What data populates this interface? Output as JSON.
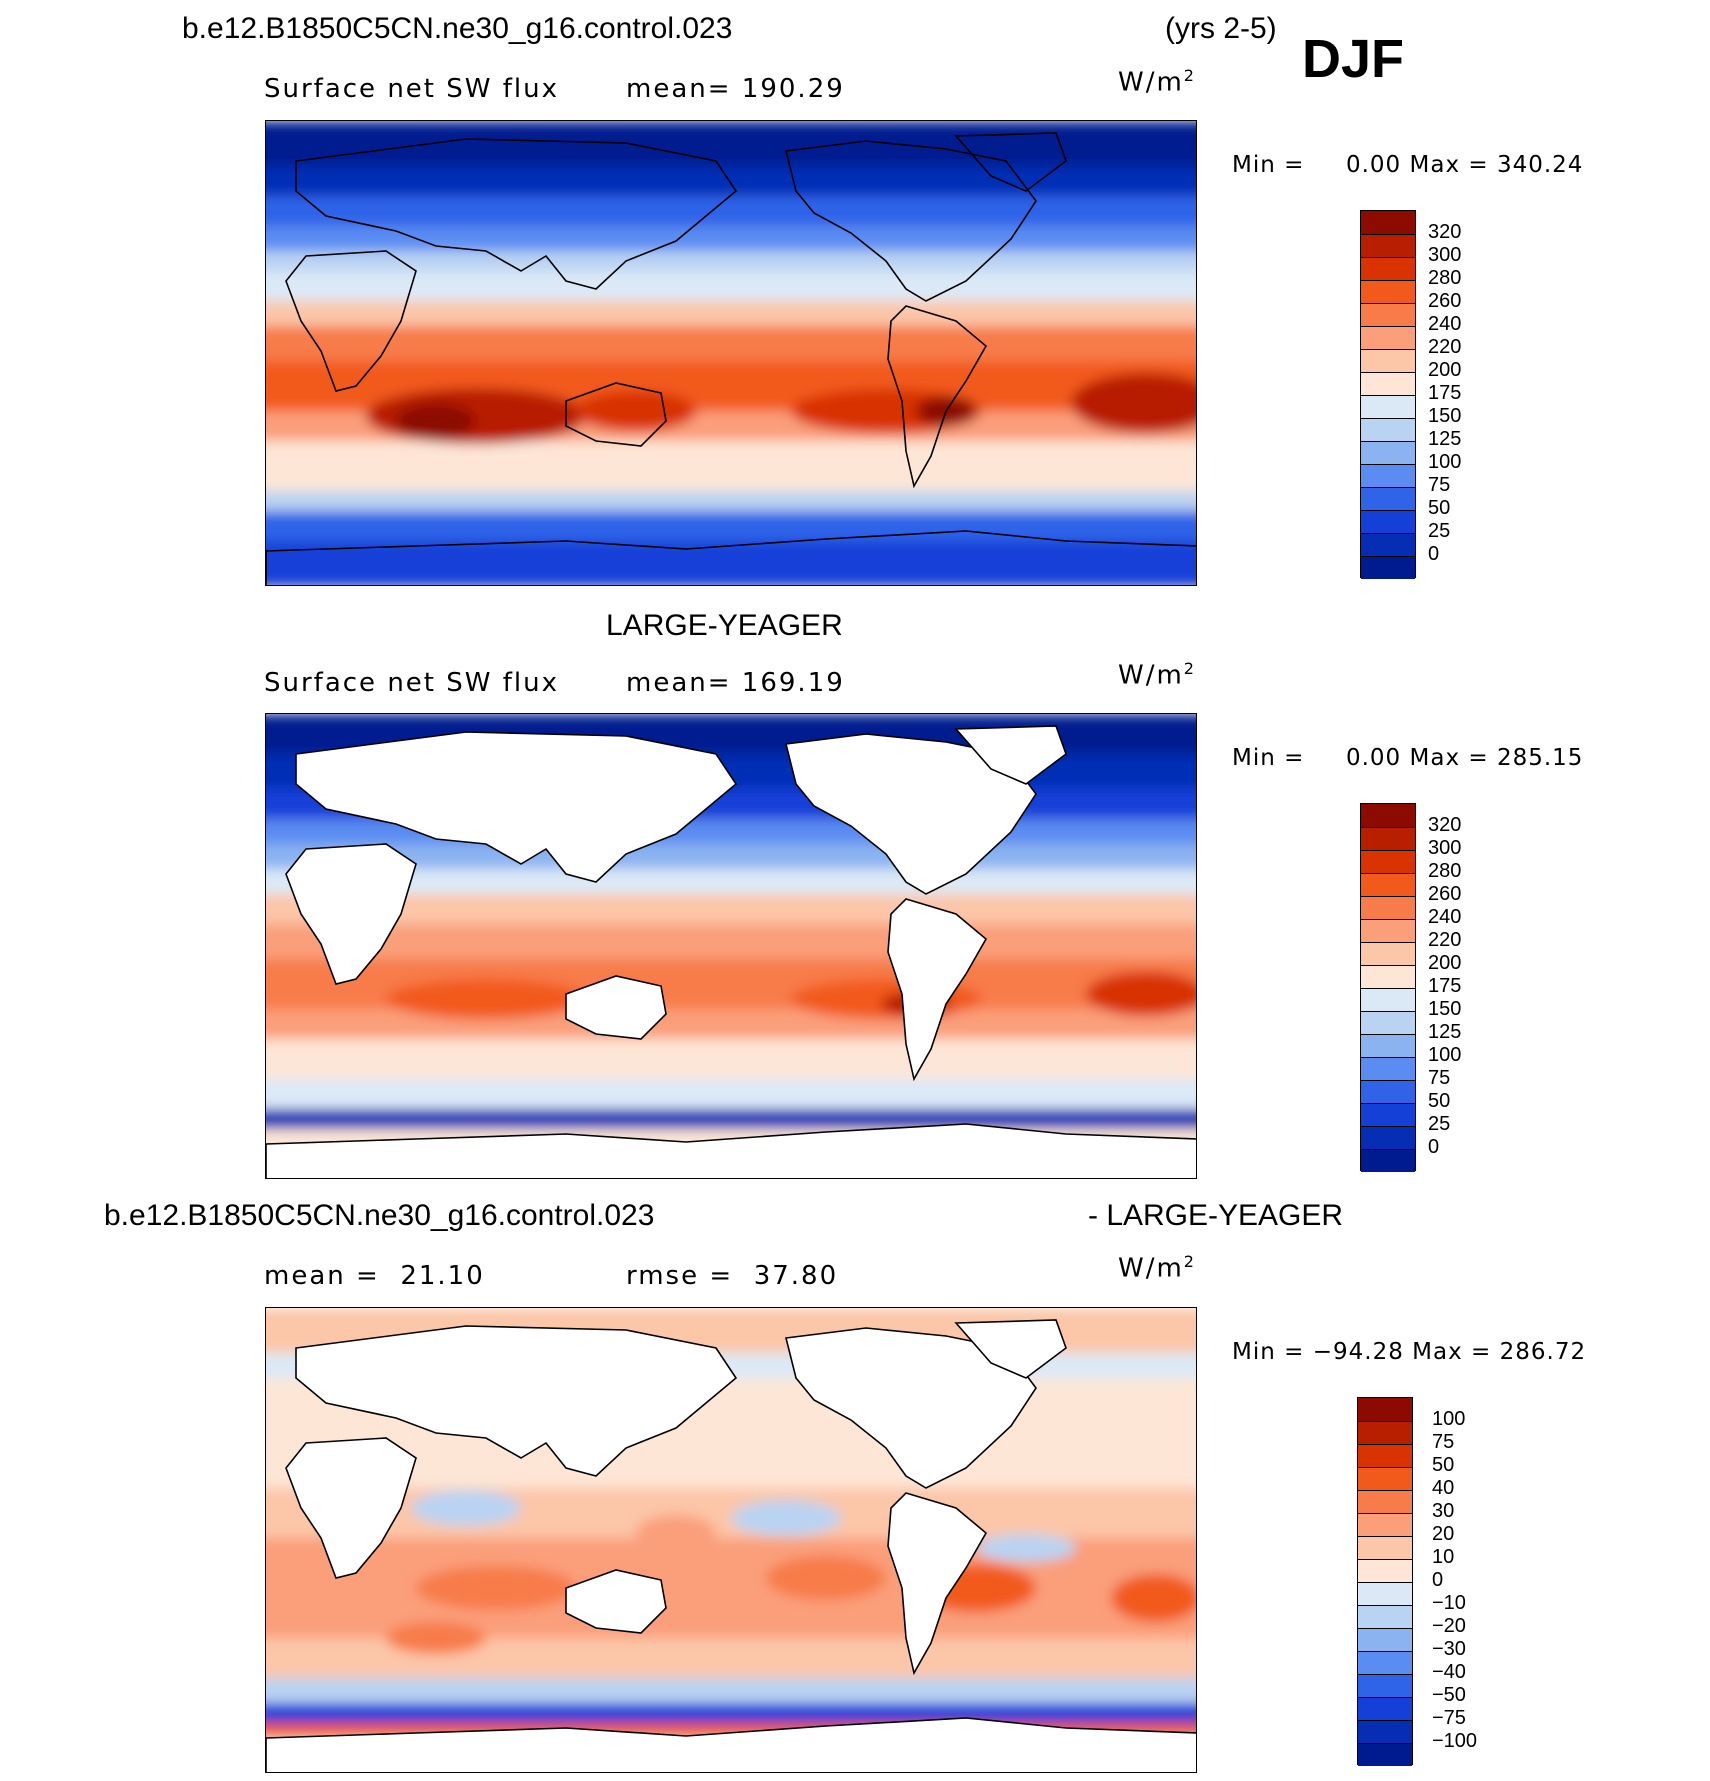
{
  "header": {
    "case_name": "b.e12.B1850C5CN.ne30_g16.control.023",
    "years": "(yrs 2-5)",
    "season": "DJF"
  },
  "panels": [
    {
      "id": "model",
      "title_left": "",
      "title_right": "",
      "variable": "Surface net SW flux",
      "stat1_label": "mean=",
      "stat1_value": "190.29",
      "stat2_label": "",
      "stat2_value": "",
      "units_base": "W/m",
      "units_exp": "2",
      "min_label": "Min =",
      "min_value": "0.00",
      "max_label": "Max =",
      "max_value": "340.24",
      "colorbar": {
        "labels": [
          "320",
          "300",
          "280",
          "260",
          "240",
          "220",
          "200",
          "175",
          "150",
          "125",
          "100",
          "75",
          "50",
          "25",
          "0"
        ],
        "colors": [
          "#8c0a00",
          "#b81e00",
          "#d83300",
          "#f25a1c",
          "#f77c4a",
          "#fa9f7a",
          "#fcc6a8",
          "#fde6d6",
          "#dbe9f7",
          "#b9d3f2",
          "#8bb3f0",
          "#5a8cf2",
          "#2f63e8",
          "#1440d8",
          "#062eb5",
          "#001b8f"
        ]
      },
      "chart_data": {
        "type": "heatmap",
        "title": "Surface net SW flux",
        "mean": 190.29,
        "min": 0.0,
        "max": 340.24,
        "units": "W/m2",
        "contour_levels": [
          0,
          25,
          50,
          75,
          100,
          125,
          150,
          175,
          200,
          220,
          240,
          260,
          280,
          300,
          320
        ]
      }
    },
    {
      "id": "obs",
      "title_left": "LARGE-YEAGER",
      "title_right": "",
      "variable": "Surface net SW flux",
      "stat1_label": "mean=",
      "stat1_value": "169.19",
      "stat2_label": "",
      "stat2_value": "",
      "units_base": "W/m",
      "units_exp": "2",
      "min_label": "Min =",
      "min_value": "0.00",
      "max_label": "Max =",
      "max_value": "285.15",
      "colorbar": {
        "labels": [
          "320",
          "300",
          "280",
          "260",
          "240",
          "220",
          "200",
          "175",
          "150",
          "125",
          "100",
          "75",
          "50",
          "25",
          "0"
        ],
        "colors": [
          "#8c0a00",
          "#b81e00",
          "#d83300",
          "#f25a1c",
          "#f77c4a",
          "#fa9f7a",
          "#fcc6a8",
          "#fde6d6",
          "#dbe9f7",
          "#b9d3f2",
          "#8bb3f0",
          "#5a8cf2",
          "#2f63e8",
          "#1440d8",
          "#062eb5",
          "#001b8f"
        ]
      },
      "chart_data": {
        "type": "heatmap",
        "title": "Surface net SW flux",
        "mean": 169.19,
        "min": 0.0,
        "max": 285.15,
        "units": "W/m2",
        "contour_levels": [
          0,
          25,
          50,
          75,
          100,
          125,
          150,
          175,
          200,
          220,
          240,
          260,
          280,
          300,
          320
        ]
      }
    },
    {
      "id": "diff",
      "title_left": "b.e12.B1850C5CN.ne30_g16.control.023",
      "title_right": "- LARGE-YEAGER",
      "variable": "",
      "stat1_label": "mean =",
      "stat1_value": "21.10",
      "stat2_label": "rmse =",
      "stat2_value": "37.80",
      "units_base": "W/m",
      "units_exp": "2",
      "min_label": "Min =",
      "min_value": "−94.28",
      "max_label": "Max =",
      "max_value": "286.72",
      "colorbar": {
        "labels": [
          "100",
          "75",
          "50",
          "40",
          "30",
          "20",
          "10",
          "0",
          "−10",
          "−20",
          "−30",
          "−40",
          "−50",
          "−75",
          "−100"
        ],
        "colors": [
          "#8c0a00",
          "#b81e00",
          "#d83300",
          "#f25a1c",
          "#f77c4a",
          "#fa9f7a",
          "#fcc6a8",
          "#fde6d6",
          "#dbe9f7",
          "#b9d3f2",
          "#8bb3f0",
          "#5a8cf2",
          "#2f63e8",
          "#1440d8",
          "#062eb5",
          "#001b8f"
        ]
      },
      "chart_data": {
        "type": "heatmap",
        "mean": 21.1,
        "rmse": 37.8,
        "min": -94.28,
        "max": 286.72,
        "units": "W/m2",
        "contour_levels": [
          -100,
          -75,
          -50,
          -40,
          -30,
          -20,
          -10,
          0,
          10,
          20,
          30,
          40,
          50,
          75,
          100
        ]
      }
    }
  ]
}
